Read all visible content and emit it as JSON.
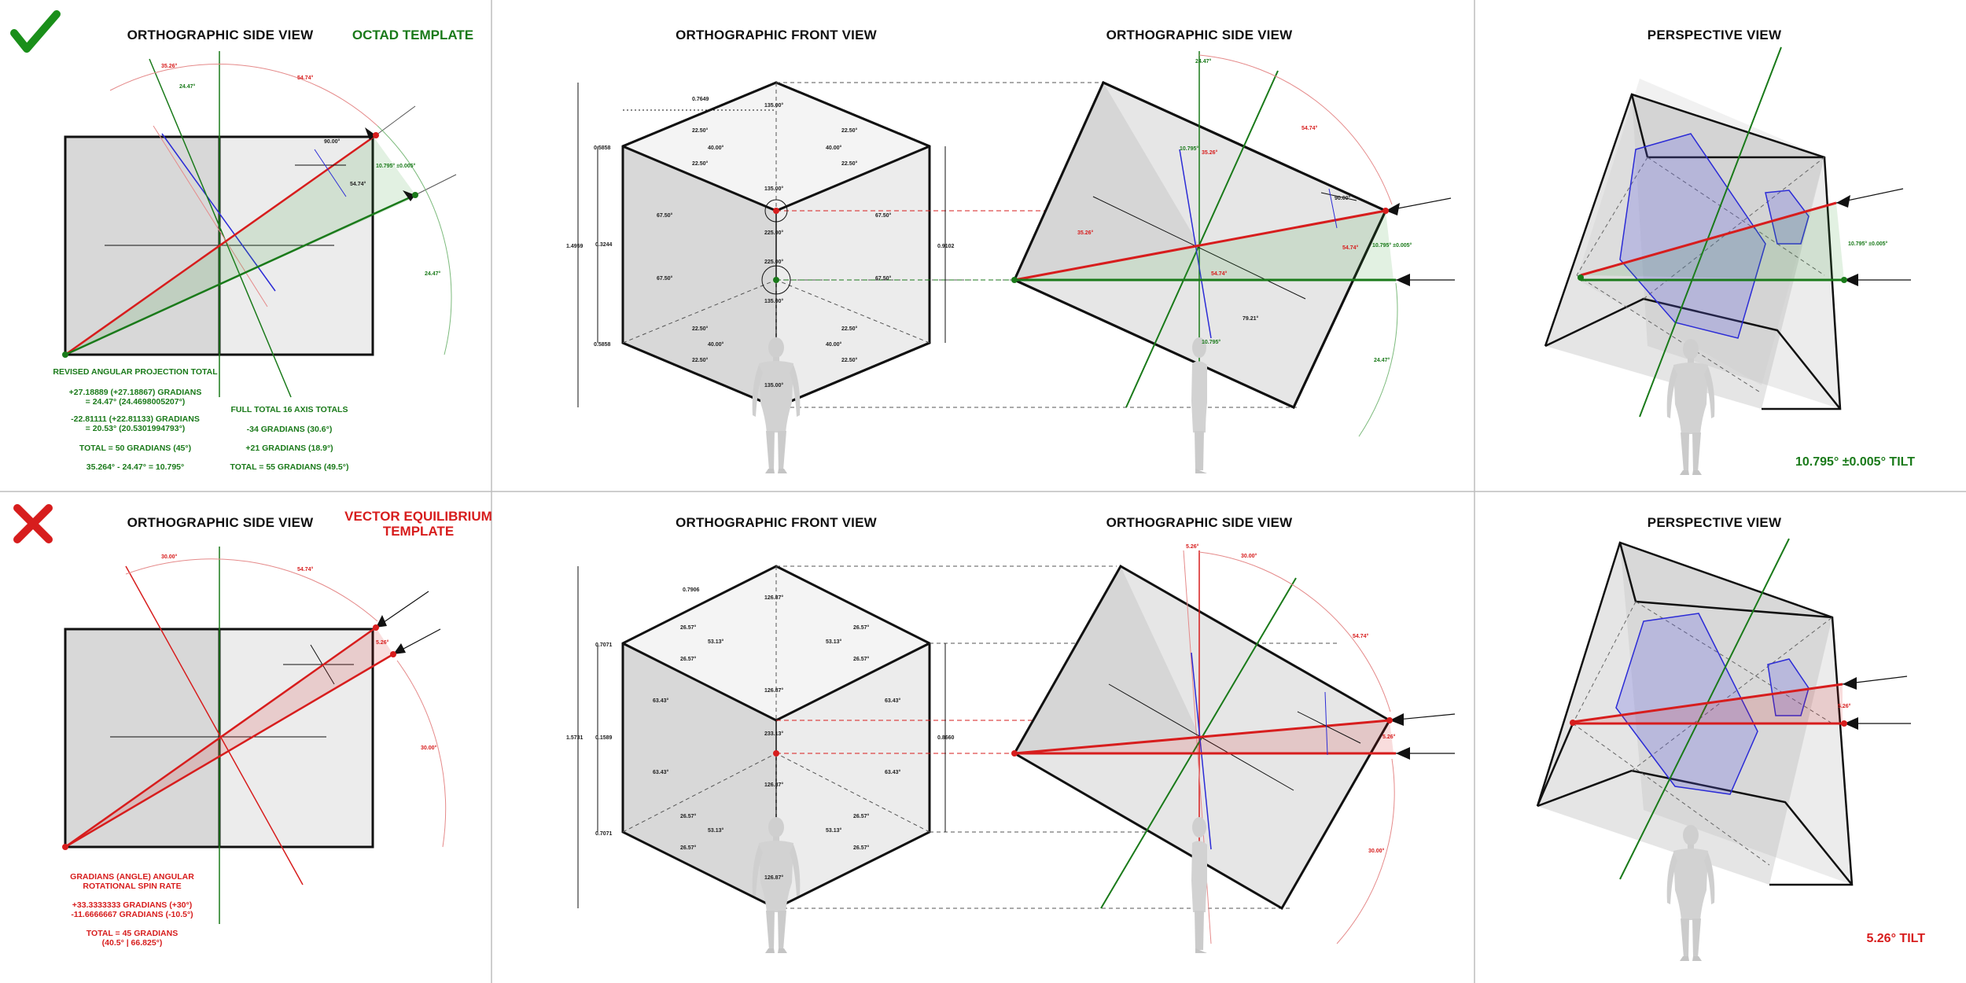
{
  "colors": {
    "green": "#1a7a1a",
    "red": "#d71d1d",
    "blue": "#2b2bd6",
    "face_light": "#ececec",
    "face_mid": "#dcdcdc",
    "face_dark": "#cfcfcf"
  },
  "top": {
    "status_icon": "checkmark-icon",
    "side_title": "ORTHOGRAPHIC SIDE VIEW",
    "template": "OCTAD TEMPLATE",
    "front_title": "ORTHOGRAPHIC FRONT VIEW",
    "side2_title": "ORTHOGRAPHIC SIDE VIEW",
    "persp_title": "PERSPECTIVE VIEW",
    "tilt": "10.795° ±0.005° TILT",
    "side_angles": {
      "a1": "35.26°",
      "a2": "24.47°",
      "a3": "54.74°",
      "a4": "90.00°",
      "a5": "10.795° ±0.005°",
      "a6": "54.74°",
      "a7": "24.47°"
    },
    "notes_left": [
      "REVISED ANGULAR PROJECTION TOTAL",
      "+27.18889 (+27.18867) GRADIANS",
      "= 24.47° (24.4698005207°)",
      "-22.81111 (+22.81133) GRADIANS",
      "= 20.53° (20.5301994793°)",
      "TOTAL = 50 GRADIANS (45°)",
      "35.264° - 24.47° = 10.795°"
    ],
    "notes_right": [
      "FULL TOTAL 16 AXIS TOTALS",
      "-34 GRADIANS (30.6°)",
      "+21 GRADIANS (18.9°)",
      "TOTAL = 55 GRADIANS (49.5°)"
    ],
    "front_dims": {
      "d1": "0.7649",
      "d2": "0.5858",
      "d3": "1.4959",
      "d4": "0.3244",
      "d5": "0.5858",
      "d6": "0.9102"
    },
    "front_angles": {
      "top": "135.00°",
      "a1": "22.50°",
      "a2": "40.00°",
      "a3": "22.50°",
      "a4": "40.00°",
      "a5": "22.50°",
      "a6": "22.50°",
      "mid": "135.00°",
      "c1": "225.00°",
      "c2": "225.00°",
      "l1": "67.50°",
      "r1": "67.50°",
      "l2": "67.50°",
      "r2": "67.50°",
      "c3": "135.00°",
      "b1": "22.50°",
      "b2": "40.00°",
      "b3": "22.50°",
      "b4": "40.00°",
      "b5": "22.50°",
      "b6": "22.50°",
      "bot": "135.00°"
    },
    "side2_angles": {
      "a1": "24.47°",
      "a2": "54.74°",
      "a3": "10.795°",
      "a4": "35.26°",
      "a5": "35.26°",
      "a6": "90.00°",
      "a7": "54.74°",
      "a8": "10.795° ±0.005°",
      "a9": "54.74°",
      "a10": "79.21°",
      "a11": "10.795°",
      "a12": "24.47°"
    },
    "persp_angle": "10.795° ±0.005°"
  },
  "bottom": {
    "status_icon": "cross-icon",
    "side_title": "ORTHOGRAPHIC SIDE VIEW",
    "template_l1": "VECTOR EQUILIBRIUM",
    "template_l2": "TEMPLATE",
    "front_title": "ORTHOGRAPHIC FRONT VIEW",
    "side2_title": "ORTHOGRAPHIC SIDE VIEW",
    "persp_title": "PERSPECTIVE VIEW",
    "tilt": "5.26° TILT",
    "side_angles": {
      "a1": "30.00°",
      "a2": "54.74°",
      "a3": "5.26°",
      "a4": "30.00°"
    },
    "notes": [
      "GRADIANS (ANGLE) ANGULAR",
      "ROTATIONAL SPIN RATE",
      "+33.3333333 GRADIANS (+30°)",
      "-11.6666667 GRADIANS (-10.5°)",
      "TOTAL = 45 GRADIANS",
      "(40.5° | 66.825°)"
    ],
    "front_dims": {
      "d1": "0.7906",
      "d2": "0.7071",
      "d3": "1.5731",
      "d4": "0.1589",
      "d5": "0.7071",
      "d6": "0.8660"
    },
    "front_angles": {
      "top": "126.87°",
      "a1": "26.57°",
      "a2": "53.13°",
      "a3": "26.57°",
      "a4": "53.13°",
      "a5": "26.57°",
      "a6": "26.57°",
      "mid": "126.87°",
      "l1": "63.43°",
      "r1": "63.43°",
      "c1": "233.13°",
      "l2": "63.43°",
      "r2": "63.43°",
      "c3": "126.87°",
      "b1": "26.57°",
      "b2": "53.13°",
      "b3": "26.57°",
      "b4": "53.13°",
      "b5": "26.57°",
      "b6": "26.57°",
      "bot": "126.87°"
    },
    "side2_angles": {
      "a1": "5.26°",
      "a2": "30.00°",
      "a3": "54.74°",
      "a4": "5.26°",
      "a5": "30.00°"
    },
    "persp_angle": "5.26°"
  }
}
